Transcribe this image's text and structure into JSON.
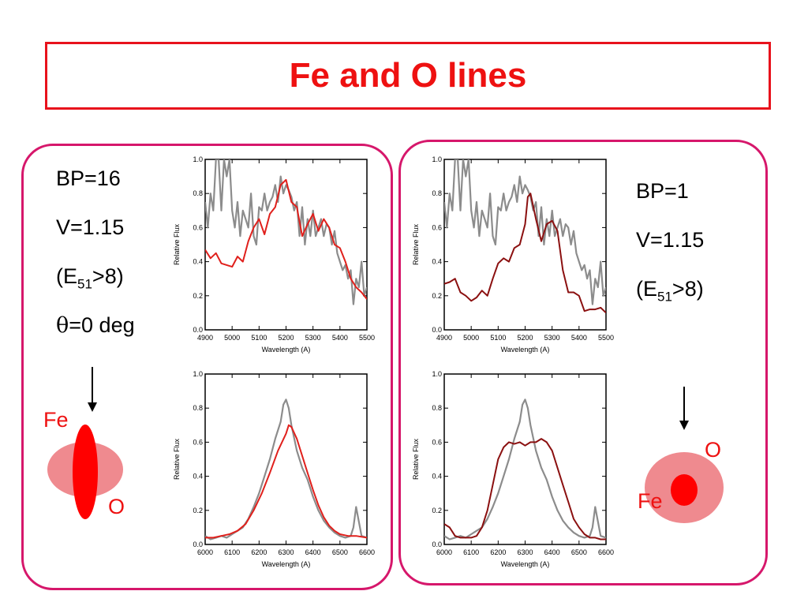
{
  "title": "Fe and O lines",
  "left_panel": {
    "params": [
      "BP=16",
      "V=1.15"
    ],
    "energy": {
      "pre": "(E",
      "sub": "51",
      "post": ">8)"
    },
    "angle": {
      "symbol": "θ",
      "text": "=0 deg"
    },
    "diagram": {
      "fe_label": "Fe",
      "o_label": "O"
    }
  },
  "right_panel": {
    "params": [
      "BP=1",
      "V=1.15"
    ],
    "energy": {
      "pre": "(E",
      "sub": "51",
      "post": ">8)"
    },
    "diagram": {
      "fe_label": "Fe",
      "o_label": "O"
    }
  },
  "colors": {
    "title": "#ee1111",
    "panel_border": "#d6176b",
    "observed": "#8c8c8c",
    "model_left": "#e0201c",
    "model_right": "#8b1010",
    "diagram_outer": "#ef8a8f",
    "diagram_inner": "#ff0000"
  },
  "chart_data": [
    {
      "id": "left-top",
      "type": "line",
      "xlabel": "Wavelength (A)",
      "ylabel": "Relative Flux",
      "xlim": [
        4900,
        5500
      ],
      "ylim": [
        0,
        1
      ],
      "xticks": [
        4900,
        5000,
        5100,
        5200,
        5300,
        5400,
        5500
      ],
      "yticks": [
        0.0,
        0.2,
        0.4,
        0.6,
        0.8,
        1.0
      ],
      "series": [
        {
          "role": "observed",
          "color": "#8c8c8c",
          "x": [
            4900,
            4910,
            4920,
            4930,
            4940,
            4950,
            4960,
            4970,
            4980,
            4990,
            5000,
            5010,
            5020,
            5030,
            5040,
            5050,
            5060,
            5070,
            5080,
            5090,
            5100,
            5110,
            5120,
            5130,
            5140,
            5150,
            5160,
            5170,
            5180,
            5190,
            5200,
            5210,
            5220,
            5230,
            5240,
            5250,
            5260,
            5270,
            5280,
            5290,
            5300,
            5310,
            5320,
            5330,
            5340,
            5350,
            5360,
            5370,
            5380,
            5390,
            5400,
            5410,
            5420,
            5430,
            5440,
            5450,
            5460,
            5470,
            5480,
            5490,
            5500
          ],
          "y": [
            0.75,
            0.6,
            0.8,
            0.7,
            1.0,
            1.0,
            0.7,
            1.0,
            0.9,
            1.0,
            0.7,
            0.6,
            0.75,
            0.55,
            0.7,
            0.65,
            0.6,
            0.8,
            0.55,
            0.5,
            0.72,
            0.7,
            0.8,
            0.7,
            0.75,
            0.78,
            0.85,
            0.75,
            0.9,
            0.8,
            0.85,
            0.82,
            0.78,
            0.7,
            0.75,
            0.55,
            0.72,
            0.5,
            0.65,
            0.55,
            0.7,
            0.55,
            0.6,
            0.65,
            0.55,
            0.62,
            0.6,
            0.5,
            0.58,
            0.45,
            0.4,
            0.35,
            0.38,
            0.3,
            0.35,
            0.15,
            0.3,
            0.25,
            0.4,
            0.2,
            0.25
          ]
        },
        {
          "role": "model",
          "color": "#e0201c",
          "x": [
            4900,
            4920,
            4940,
            4960,
            4980,
            5000,
            5020,
            5040,
            5060,
            5080,
            5100,
            5120,
            5140,
            5160,
            5180,
            5200,
            5220,
            5240,
            5260,
            5280,
            5300,
            5320,
            5340,
            5360,
            5380,
            5400,
            5420,
            5440,
            5460,
            5480,
            5500
          ],
          "y": [
            0.47,
            0.42,
            0.45,
            0.39,
            0.38,
            0.37,
            0.43,
            0.4,
            0.52,
            0.6,
            0.65,
            0.56,
            0.68,
            0.72,
            0.85,
            0.88,
            0.75,
            0.72,
            0.55,
            0.62,
            0.68,
            0.58,
            0.65,
            0.6,
            0.5,
            0.48,
            0.4,
            0.3,
            0.25,
            0.22,
            0.18
          ]
        }
      ]
    },
    {
      "id": "left-bottom",
      "type": "line",
      "xlabel": "Wavelength (A)",
      "ylabel": "Relative Flux",
      "xlim": [
        6000,
        6600
      ],
      "ylim": [
        0,
        1
      ],
      "xticks": [
        6000,
        6100,
        6200,
        6300,
        6400,
        6500,
        6600
      ],
      "yticks": [
        0.0,
        0.2,
        0.4,
        0.6,
        0.8,
        1.0
      ],
      "series": [
        {
          "role": "observed",
          "color": "#8c8c8c",
          "x": [
            6000,
            6020,
            6040,
            6060,
            6080,
            6100,
            6120,
            6140,
            6160,
            6180,
            6200,
            6220,
            6240,
            6260,
            6280,
            6290,
            6300,
            6310,
            6320,
            6340,
            6360,
            6380,
            6400,
            6420,
            6440,
            6460,
            6480,
            6500,
            6520,
            6540,
            6550,
            6560,
            6580,
            6600
          ],
          "y": [
            0.05,
            0.03,
            0.04,
            0.05,
            0.04,
            0.06,
            0.08,
            0.1,
            0.15,
            0.22,
            0.3,
            0.4,
            0.5,
            0.62,
            0.72,
            0.82,
            0.85,
            0.8,
            0.7,
            0.55,
            0.45,
            0.38,
            0.28,
            0.2,
            0.14,
            0.1,
            0.07,
            0.05,
            0.04,
            0.05,
            0.1,
            0.22,
            0.05,
            0.04
          ]
        },
        {
          "role": "model",
          "color": "#e0201c",
          "x": [
            6000,
            6030,
            6060,
            6090,
            6120,
            6150,
            6180,
            6210,
            6240,
            6270,
            6300,
            6310,
            6320,
            6340,
            6360,
            6380,
            6400,
            6420,
            6440,
            6460,
            6480,
            6500,
            6530,
            6560,
            6600
          ],
          "y": [
            0.04,
            0.04,
            0.05,
            0.06,
            0.08,
            0.12,
            0.2,
            0.3,
            0.42,
            0.55,
            0.65,
            0.7,
            0.69,
            0.62,
            0.52,
            0.42,
            0.32,
            0.23,
            0.16,
            0.11,
            0.08,
            0.06,
            0.05,
            0.05,
            0.04
          ]
        }
      ]
    },
    {
      "id": "right-top",
      "type": "line",
      "xlabel": "Wavelength (A)",
      "ylabel": "Relative Flux",
      "xlim": [
        4900,
        5500
      ],
      "ylim": [
        0,
        1
      ],
      "xticks": [
        4900,
        5000,
        5100,
        5200,
        5300,
        5400,
        5500
      ],
      "yticks": [
        0.0,
        0.2,
        0.4,
        0.6,
        0.8,
        1.0
      ],
      "series": [
        {
          "role": "observed",
          "color": "#8c8c8c",
          "x": [
            4900,
            4910,
            4920,
            4930,
            4940,
            4950,
            4960,
            4970,
            4980,
            4990,
            5000,
            5010,
            5020,
            5030,
            5040,
            5050,
            5060,
            5070,
            5080,
            5090,
            5100,
            5110,
            5120,
            5130,
            5140,
            5150,
            5160,
            5170,
            5180,
            5190,
            5200,
            5210,
            5220,
            5230,
            5240,
            5250,
            5260,
            5270,
            5280,
            5290,
            5300,
            5310,
            5320,
            5330,
            5340,
            5350,
            5360,
            5370,
            5380,
            5390,
            5400,
            5410,
            5420,
            5430,
            5440,
            5450,
            5460,
            5470,
            5480,
            5490,
            5500
          ],
          "y": [
            0.75,
            0.6,
            0.8,
            0.7,
            1.0,
            1.0,
            0.7,
            1.0,
            0.9,
            1.0,
            0.7,
            0.6,
            0.75,
            0.55,
            0.7,
            0.65,
            0.6,
            0.8,
            0.55,
            0.5,
            0.72,
            0.7,
            0.8,
            0.7,
            0.75,
            0.78,
            0.85,
            0.75,
            0.9,
            0.8,
            0.85,
            0.82,
            0.78,
            0.7,
            0.75,
            0.55,
            0.72,
            0.5,
            0.65,
            0.55,
            0.7,
            0.55,
            0.6,
            0.65,
            0.55,
            0.62,
            0.6,
            0.5,
            0.58,
            0.45,
            0.4,
            0.35,
            0.38,
            0.3,
            0.35,
            0.15,
            0.3,
            0.25,
            0.4,
            0.2,
            0.25
          ]
        },
        {
          "role": "model",
          "color": "#8b1010",
          "x": [
            4900,
            4920,
            4940,
            4960,
            4980,
            5000,
            5020,
            5040,
            5060,
            5080,
            5100,
            5120,
            5140,
            5160,
            5180,
            5200,
            5210,
            5220,
            5240,
            5260,
            5280,
            5300,
            5320,
            5340,
            5360,
            5380,
            5400,
            5420,
            5440,
            5460,
            5480,
            5500
          ],
          "y": [
            0.27,
            0.28,
            0.3,
            0.22,
            0.2,
            0.17,
            0.19,
            0.23,
            0.2,
            0.3,
            0.39,
            0.42,
            0.4,
            0.48,
            0.5,
            0.62,
            0.78,
            0.8,
            0.65,
            0.52,
            0.62,
            0.64,
            0.58,
            0.35,
            0.22,
            0.22,
            0.2,
            0.11,
            0.12,
            0.12,
            0.13,
            0.1
          ]
        }
      ]
    },
    {
      "id": "right-bottom",
      "type": "line",
      "xlabel": "Wavelength (A)",
      "ylabel": "Relative Flux",
      "xlim": [
        6000,
        6600
      ],
      "ylim": [
        0,
        1
      ],
      "xticks": [
        6000,
        6100,
        6200,
        6300,
        6400,
        6500,
        6600
      ],
      "yticks": [
        0.0,
        0.2,
        0.4,
        0.6,
        0.8,
        1.0
      ],
      "series": [
        {
          "role": "observed",
          "color": "#8c8c8c",
          "x": [
            6000,
            6020,
            6040,
            6060,
            6080,
            6100,
            6120,
            6140,
            6160,
            6180,
            6200,
            6220,
            6240,
            6260,
            6280,
            6290,
            6300,
            6310,
            6320,
            6340,
            6360,
            6380,
            6400,
            6420,
            6440,
            6460,
            6480,
            6500,
            6520,
            6540,
            6550,
            6560,
            6580,
            6600
          ],
          "y": [
            0.05,
            0.03,
            0.04,
            0.05,
            0.04,
            0.06,
            0.08,
            0.1,
            0.15,
            0.22,
            0.3,
            0.4,
            0.5,
            0.62,
            0.72,
            0.82,
            0.85,
            0.8,
            0.7,
            0.55,
            0.45,
            0.38,
            0.28,
            0.2,
            0.14,
            0.1,
            0.07,
            0.05,
            0.04,
            0.05,
            0.1,
            0.22,
            0.05,
            0.04
          ]
        },
        {
          "role": "model",
          "color": "#8b1010",
          "x": [
            6000,
            6020,
            6040,
            6060,
            6080,
            6100,
            6120,
            6140,
            6160,
            6180,
            6200,
            6220,
            6240,
            6260,
            6280,
            6300,
            6320,
            6340,
            6360,
            6380,
            6400,
            6420,
            6440,
            6460,
            6480,
            6500,
            6520,
            6540,
            6560,
            6580,
            6600
          ],
          "y": [
            0.12,
            0.1,
            0.05,
            0.04,
            0.04,
            0.04,
            0.05,
            0.1,
            0.2,
            0.35,
            0.5,
            0.57,
            0.6,
            0.59,
            0.6,
            0.58,
            0.6,
            0.6,
            0.62,
            0.6,
            0.55,
            0.45,
            0.35,
            0.25,
            0.15,
            0.1,
            0.06,
            0.04,
            0.04,
            0.03,
            0.03
          ]
        }
      ]
    }
  ]
}
